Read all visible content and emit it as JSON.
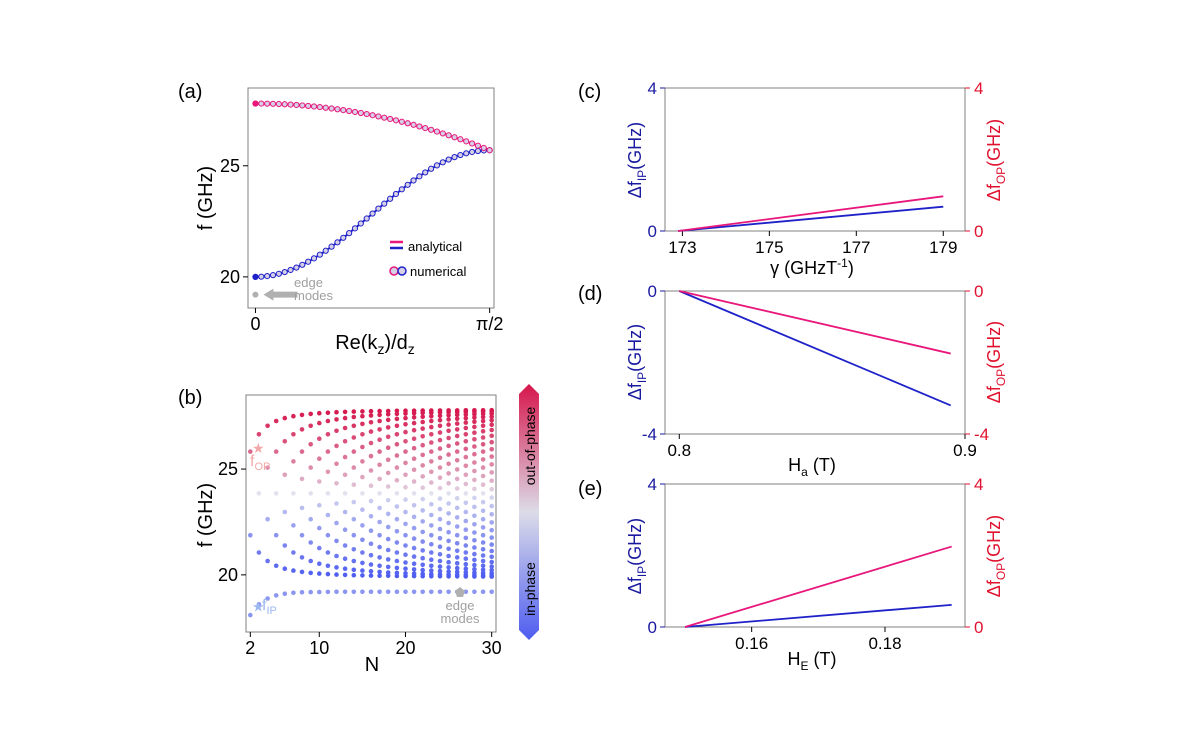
{
  "colors": {
    "ip": "#1f22c9",
    "op": "#e8177b",
    "axis_ip": "#1a1aa0",
    "axis_op": "#e0122f",
    "edge": "#b0b0b0",
    "num_ip_edge": "#1f22c9",
    "num_op_edge": "#e8177b",
    "num_fill": "#d7cfe6"
  },
  "chart_data": [
    {
      "id": "a",
      "type": "line",
      "panel_label": "(a)",
      "xlabel": "Re(k",
      "xlabel_sub1": "z",
      "xlabel_mid": ")/d",
      "xlabel_sub2": "z",
      "ylabel": "f (GHz)",
      "xlim": [
        -0.05,
        1.6
      ],
      "ylim": [
        18.6,
        28.5
      ],
      "xticks": [
        0,
        1.5708
      ],
      "xtick_labels": [
        "0",
        "π/2"
      ],
      "yticks": [
        20,
        25
      ],
      "ytick_labels": [
        "20",
        "25"
      ],
      "series": [
        {
          "name": "in-phase",
          "f_min": 20.0,
          "f_max": 25.7
        },
        {
          "name": "out-of-phase",
          "f_min": 25.7,
          "f_max": 27.8
        }
      ],
      "legend": {
        "analytical": "analytical",
        "numerical": "numerical"
      },
      "annotation": {
        "edge_level": 19.2,
        "line1": "edge",
        "line2": "modes"
      }
    },
    {
      "id": "b",
      "type": "scatter",
      "panel_label": "(b)",
      "xlabel": "N",
      "ylabel": "f (GHz)",
      "xlim": [
        1.5,
        30.5
      ],
      "ylim": [
        17.3,
        28.5
      ],
      "xticks": [
        2,
        10,
        20,
        30
      ],
      "xtick_labels": [
        "2",
        "10",
        "20",
        "30"
      ],
      "yticks": [
        20,
        25
      ],
      "ytick_labels": [
        "20",
        "25"
      ],
      "f_center": 23.85,
      "f_half_span": 3.95,
      "edge_level": 19.2,
      "edge_low": 18.1,
      "colorbar": {
        "top": "out-of-phase",
        "bottom": "in-phase",
        "top_color": "#d6164c",
        "mid_color": "#dcdce8",
        "bottom_color": "#4e5df0"
      },
      "markers": {
        "fop": {
          "base": "f",
          "sub": "OP",
          "n": 2,
          "f": 26.0
        },
        "fip": {
          "base": "f",
          "sub": "IP",
          "n": 2,
          "f": 18.5
        }
      },
      "annotation": {
        "line1": "edge",
        "line2": "modes"
      }
    },
    {
      "id": "c",
      "type": "line",
      "panel_label": "(c)",
      "xlabel": "γ (GHzT",
      "xlabel_sup": "-1",
      "xlabel_end": ")",
      "ylabel_left": {
        "base": "Δf",
        "sub": "IP",
        "unit": "(GHz)"
      },
      "ylabel_right": {
        "base": "Δf",
        "sub": "OP",
        "unit": "(GHz)"
      },
      "xlim": [
        172.6,
        179.5
      ],
      "ylim": [
        0,
        4
      ],
      "xticks": [
        173,
        175,
        177,
        179
      ],
      "xtick_labels": [
        "173",
        "175",
        "177",
        "179"
      ],
      "yticks": [
        0,
        4
      ],
      "ytick_labels": [
        "0",
        "4"
      ],
      "x": [
        172.9,
        179.0
      ],
      "series": [
        {
          "name": "IP",
          "values": [
            0.0,
            0.68
          ]
        },
        {
          "name": "OP",
          "values": [
            0.0,
            0.97
          ]
        }
      ]
    },
    {
      "id": "d",
      "type": "line",
      "panel_label": "(d)",
      "xlabel": "H",
      "xlabel_sub": "a",
      "xlabel_end": " (T)",
      "ylabel_left": {
        "base": "Δf",
        "sub": "IP",
        "unit": "(GHz)"
      },
      "ylabel_right": {
        "base": "Δf",
        "sub": "OP",
        "unit": "(GHz)"
      },
      "xlim": [
        0.795,
        0.9
      ],
      "ylim": [
        -4,
        0
      ],
      "xticks": [
        0.8,
        0.9
      ],
      "xtick_labels": [
        "0.8",
        "0.9"
      ],
      "yticks": [
        -4,
        0
      ],
      "ytick_labels": [
        "-4",
        "0"
      ],
      "x": [
        0.8,
        0.895
      ],
      "series": [
        {
          "name": "IP",
          "values": [
            0.0,
            -3.2
          ]
        },
        {
          "name": "OP",
          "values": [
            0.0,
            -1.75
          ]
        }
      ]
    },
    {
      "id": "e",
      "type": "line",
      "panel_label": "(e)",
      "xlabel": "H",
      "xlabel_sub": "E",
      "xlabel_end": " (T)",
      "ylabel_left": {
        "base": "Δf",
        "sub": "IP",
        "unit": "(GHz)"
      },
      "ylabel_right": {
        "base": "Δf",
        "sub": "OP",
        "unit": "(GHz)"
      },
      "xlim": [
        0.147,
        0.192
      ],
      "ylim": [
        0,
        4
      ],
      "xticks": [
        0.16,
        0.18
      ],
      "xtick_labels": [
        "0.16",
        "0.18"
      ],
      "yticks": [
        0,
        4
      ],
      "ytick_labels": [
        "0",
        "4"
      ],
      "x": [
        0.15,
        0.19
      ],
      "series": [
        {
          "name": "IP",
          "values": [
            0.0,
            0.62
          ]
        },
        {
          "name": "OP",
          "values": [
            0.0,
            2.25
          ]
        }
      ]
    }
  ]
}
